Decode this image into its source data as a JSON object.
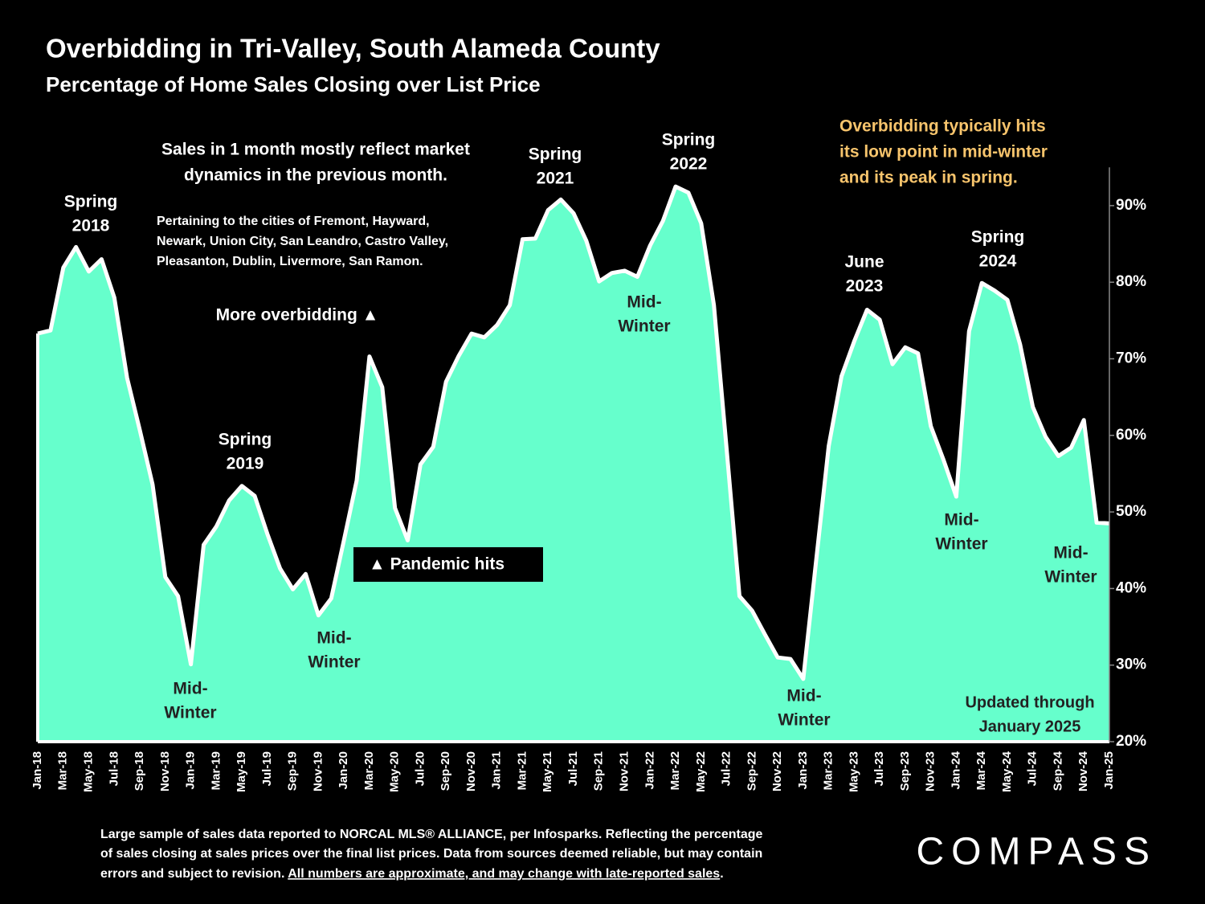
{
  "chart_data": {
    "type": "area",
    "title": "Overbidding in Tri-Valley, South Alameda County",
    "subtitle": "Percentage of Home Sales Closing over List Price",
    "color": "#66ffcc",
    "line_color": "#ffffff",
    "categories": [
      "Jan-18",
      null,
      "Mar-18",
      null,
      "May-18",
      null,
      "Jul-18",
      null,
      "Sep-18",
      null,
      "Nov-18",
      null,
      "Jan-19",
      null,
      "Mar-19",
      null,
      "May-19",
      null,
      "Jul-19",
      null,
      "Sep-19",
      null,
      "Nov-19",
      null,
      "Jan-20",
      null,
      "Mar-20",
      null,
      "May-20",
      null,
      "Jul-20",
      null,
      "Sep-20",
      null,
      "Nov-20",
      null,
      "Jan-21",
      null,
      "Mar-21",
      null,
      "May-21",
      null,
      "Jul-21",
      null,
      "Sep-21",
      null,
      "Nov-21",
      null,
      "Jan-22",
      null,
      "Mar-22",
      null,
      "May-22",
      null,
      "Jul-22",
      null,
      "Sep-22",
      null,
      "Nov-22",
      null,
      "Jan-23",
      null,
      "Mar-23",
      null,
      "May-23",
      null,
      "Jul-23",
      null,
      "Sep-23",
      null,
      "Nov-23",
      null,
      "Jan-24",
      null,
      "Mar-24",
      null,
      "May-24",
      null,
      "Jul-24",
      null,
      "Sep-24",
      null,
      "Nov-24",
      null,
      "Jan-25"
    ],
    "values": [
      73.3,
      73.7,
      81.9,
      84.6,
      81.4,
      83,
      78,
      67.5,
      60.7,
      53.6,
      41.5,
      39,
      30.1,
      45.7,
      48.1,
      51.5,
      53.4,
      52.1,
      47.1,
      42.6,
      39.9,
      41.9,
      36.5,
      38.7,
      46.3,
      54.1,
      70.3,
      66.3,
      50.5,
      46.3,
      56.2,
      58.5,
      67,
      70.4,
      73.3,
      72.8,
      74.4,
      77,
      85.6,
      85.7,
      89.4,
      90.8,
      89,
      85.4,
      80.1,
      81.2,
      81.5,
      80.7,
      84.8,
      88,
      92.5,
      91.7,
      87.7,
      77,
      58.1,
      39,
      37.1,
      34,
      31,
      30.8,
      28.2,
      43.4,
      58.6,
      67.7,
      72.3,
      76.4,
      75.1,
      69.3,
      71.5,
      70.7,
      61.2,
      56.8,
      52,
      73.6,
      79.9,
      78.9,
      77.7,
      71.9,
      63.7,
      59.8,
      57.3,
      58.4,
      62,
      48.6,
      48.5
    ],
    "ylim": [
      20,
      95
    ],
    "yticks": [
      {
        "value": 20,
        "label": "20%"
      },
      {
        "value": 30,
        "label": "30%"
      },
      {
        "value": 40,
        "label": "40%"
      },
      {
        "value": 50,
        "label": "50%"
      },
      {
        "value": 60,
        "label": "60%"
      },
      {
        "value": 70,
        "label": "70%"
      },
      {
        "value": 80,
        "label": "80%"
      },
      {
        "value": 90,
        "label": "90%"
      }
    ],
    "annotations": [
      {
        "lines": [
          "Spring",
          "2018"
        ],
        "color": "#ffffff"
      },
      {
        "lines": [
          "Sales in 1 month mostly reflect market",
          "dynamics in the previous month."
        ],
        "color": "#ffffff"
      },
      {
        "lines": [
          "Pertaining to the cities of Fremont, Hayward,",
          "Newark, Union City, San Leandro, Castro Valley,",
          "Pleasanton, Dublin, Livermore, San Ramon."
        ],
        "color": "#ffffff"
      },
      {
        "lines": [
          "More overbidding ▲"
        ],
        "color": "#ffffff"
      },
      {
        "lines": [
          "Spring",
          "2019"
        ],
        "color": "#ffffff"
      },
      {
        "lines": [
          "Mid-",
          "Winter"
        ],
        "color": "#222222"
      },
      {
        "lines": [
          "Mid-",
          "Winter"
        ],
        "color": "#222222"
      },
      {
        "lines": [
          "▲ Pandemic hits"
        ],
        "color": "#ffffff"
      },
      {
        "lines": [
          "Spring",
          "2021"
        ],
        "color": "#ffffff"
      },
      {
        "lines": [
          "Spring",
          "2022"
        ],
        "color": "#ffffff"
      },
      {
        "lines": [
          "Mid-",
          "Winter"
        ],
        "color": "#222222"
      },
      {
        "lines": [
          "Overbidding  typically  hits",
          "its low point in mid-winter",
          "and its peak in spring."
        ],
        "color": "#f7c46c"
      },
      {
        "lines": [
          "June",
          "2023"
        ],
        "color": "#ffffff"
      },
      {
        "lines": [
          "Spring",
          "2024"
        ],
        "color": "#ffffff"
      },
      {
        "lines": [
          "Mid-",
          "Winter"
        ],
        "color": "#222222"
      },
      {
        "lines": [
          "Mid-",
          "Winter"
        ],
        "color": "#222222"
      },
      {
        "lines": [
          "Mid-",
          "Winter"
        ],
        "color": "#222222"
      },
      {
        "lines": [
          "Updated through",
          "January 2025"
        ],
        "color": "#222222"
      }
    ],
    "footnote": [
      "Large sample of sales data reported to NORCAL MLS® ALLIANCE, per Infosparks. Reflecting the percentage",
      "of sales closing at sales prices over the final list prices. Data from sources deemed reliable, but may contain",
      "errors and subject to revision. "
    ],
    "footnote_underlined": "All numbers are approximate, and may change with late-reported sales",
    "footnote_end": ".",
    "logo": "COMPASS"
  }
}
